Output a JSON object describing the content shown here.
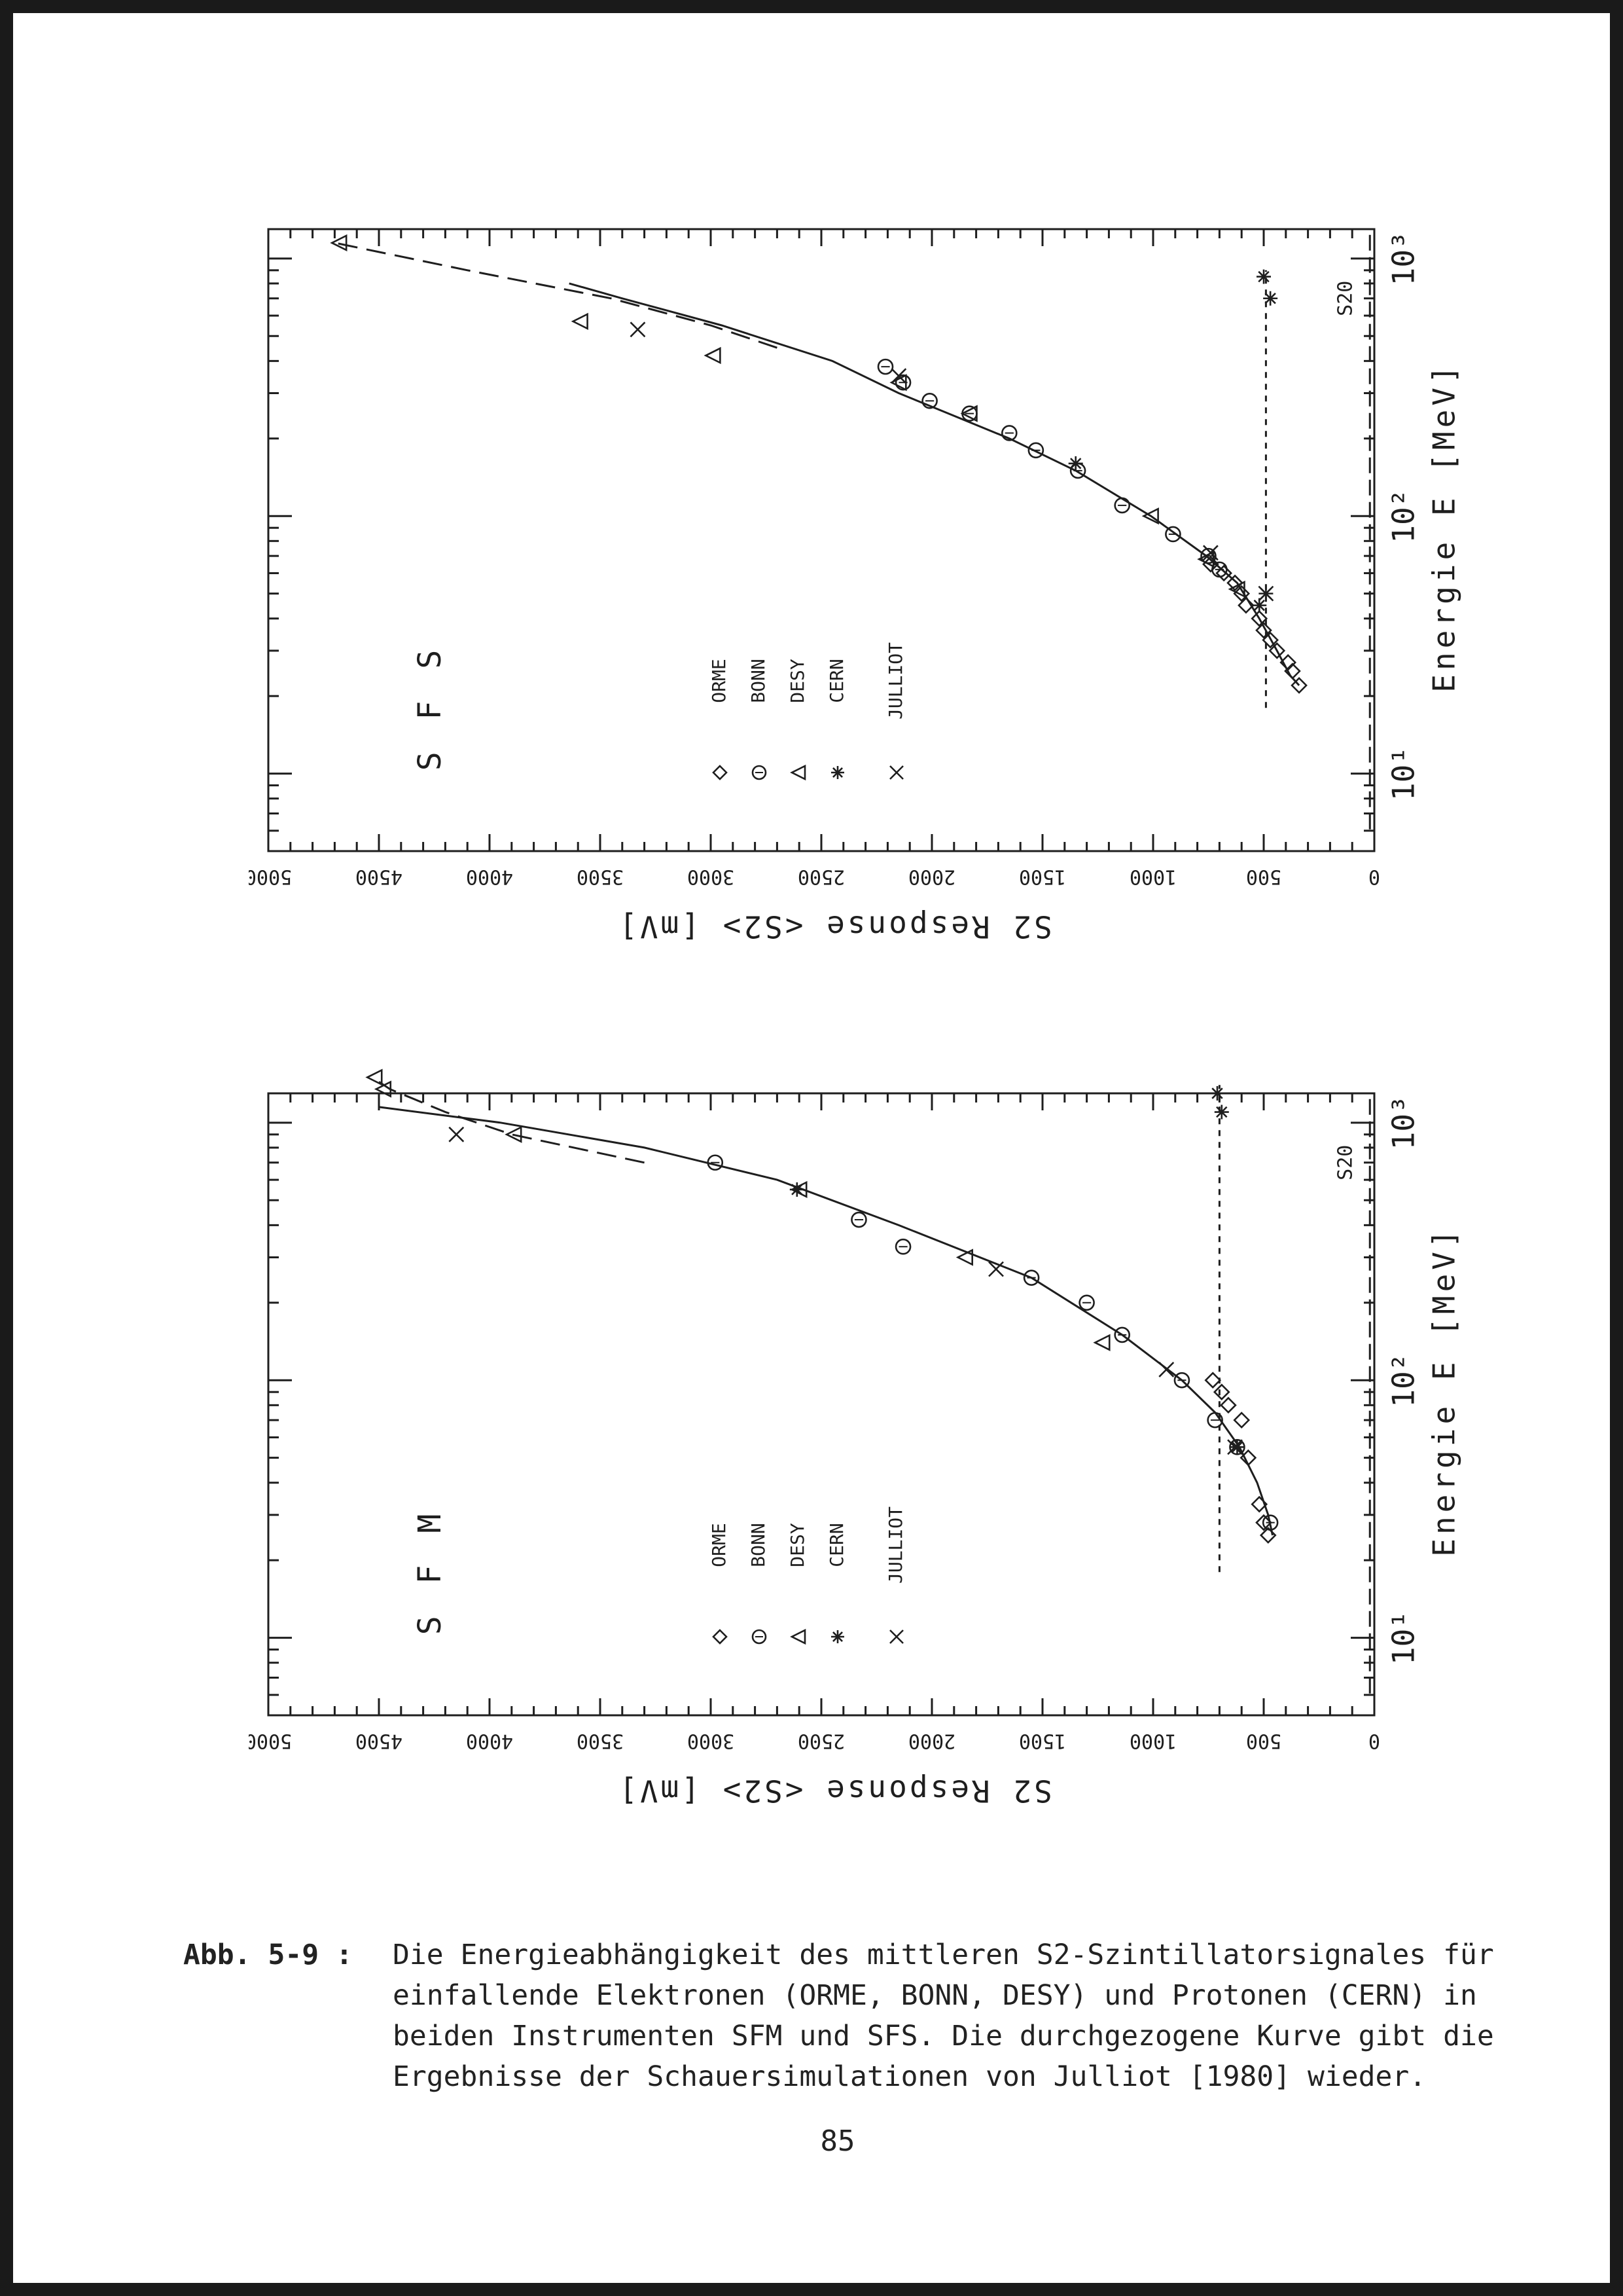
{
  "chart_data": [
    {
      "id": "sfs",
      "type": "scatter",
      "panel_label": "S F S",
      "xlabel": "Energie  E [MeV]",
      "ylabel": "S2 Response   <S2> [mV]",
      "xscale": "log",
      "xlim": [
        5,
        1300
      ],
      "ylim": [
        0,
        5000
      ],
      "x_ticklabels": [
        "10¹",
        "10²",
        "10³"
      ],
      "y_ticks": [
        0,
        500,
        1000,
        1500,
        2000,
        2500,
        3000,
        3500,
        4000,
        4500,
        5000
      ],
      "legend": [
        "ORME",
        "BONN",
        "DESY",
        "CERN",
        "JULLIOT"
      ],
      "legend_placement": "upper-middle",
      "grid": false,
      "threshold_label": "S20",
      "threshold_value": 20,
      "series": [
        {
          "name": "ORME",
          "marker": "diamond",
          "points": [
            [
              22,
              340
            ],
            [
              25,
              370
            ],
            [
              27,
              390
            ],
            [
              30,
              440
            ],
            [
              33,
              470
            ],
            [
              36,
              500
            ],
            [
              40,
              520
            ],
            [
              45,
              580
            ],
            [
              50,
              600
            ],
            [
              55,
              630
            ],
            [
              60,
              680
            ],
            [
              65,
              740
            ]
          ]
        },
        {
          "name": "BONN",
          "marker": "circle",
          "points": [
            [
              62,
              700
            ],
            [
              70,
              750
            ],
            [
              85,
              910
            ],
            [
              110,
              1140
            ],
            [
              150,
              1340
            ],
            [
              180,
              1530
            ],
            [
              210,
              1650
            ],
            [
              250,
              1830
            ],
            [
              280,
              2010
            ],
            [
              330,
              2130
            ],
            [
              380,
              2210
            ]
          ]
        },
        {
          "name": "DESY",
          "marker": "triangle",
          "points": [
            [
              52,
              620
            ],
            [
              68,
              760
            ],
            [
              100,
              1010
            ],
            [
              250,
              1830
            ],
            [
              330,
              2150
            ],
            [
              420,
              2990
            ],
            [
              570,
              3590
            ],
            [
              1150,
              4680
            ]
          ]
        },
        {
          "name": "CERN",
          "marker": "asterisk",
          "points": [
            [
              45,
              520
            ],
            [
              50,
              490
            ],
            [
              160,
              1350
            ],
            [
              700,
              470
            ],
            [
              850,
              500
            ]
          ]
        },
        {
          "name": "JULLIOT",
          "marker": "x",
          "points": [
            [
              50,
              490
            ],
            [
              72,
              740
            ],
            [
              350,
              2150
            ],
            [
              530,
              3330
            ]
          ]
        }
      ],
      "curves": {
        "simulation": {
          "style": "solid",
          "points": [
            [
              22,
              340
            ],
            [
              24,
              380
            ],
            [
              30,
              440
            ],
            [
              40,
              520
            ],
            [
              55,
              620
            ],
            [
              70,
              760
            ],
            [
              100,
              1010
            ],
            [
              150,
              1350
            ],
            [
              200,
              1650
            ],
            [
              300,
              2150
            ],
            [
              400,
              2450
            ],
            [
              550,
              2950
            ],
            [
              700,
              3400
            ],
            [
              800,
              3640
            ]
          ]
        },
        "electron_extension": {
          "style": "dashed",
          "points": [
            [
              450,
              2700
            ],
            [
              550,
              3000
            ],
            [
              700,
              3450
            ],
            [
              900,
              4100
            ],
            [
              1150,
              4700
            ]
          ]
        },
        "proton_level": {
          "style": "dotted",
          "points": [
            [
              18,
              490
            ],
            [
              900,
              490
            ]
          ]
        }
      }
    },
    {
      "id": "sfm",
      "type": "scatter",
      "panel_label": "S F M",
      "xlabel": "Energie  E [MeV]",
      "ylabel": "S2 Response   <S2> [mV]",
      "xscale": "log",
      "xlim": [
        5,
        1300
      ],
      "ylim": [
        0,
        5000
      ],
      "x_ticklabels": [
        "10¹",
        "10²",
        "10³"
      ],
      "y_ticks": [
        0,
        500,
        1000,
        1500,
        2000,
        2500,
        3000,
        3500,
        4000,
        4500,
        5000
      ],
      "legend": [
        "ORME",
        "BONN",
        "DESY",
        "CERN",
        "JULLIOT"
      ],
      "legend_placement": "upper-middle",
      "grid": false,
      "threshold_label": "S20",
      "threshold_value": 20,
      "series": [
        {
          "name": "ORME",
          "marker": "diamond",
          "points": [
            [
              25,
              480
            ],
            [
              28,
              500
            ],
            [
              33,
              520
            ],
            [
              50,
              570
            ],
            [
              70,
              600
            ],
            [
              80,
              660
            ],
            [
              90,
              690
            ],
            [
              100,
              730
            ]
          ]
        },
        {
          "name": "BONN",
          "marker": "circle",
          "points": [
            [
              28,
              470
            ],
            [
              55,
              620
            ],
            [
              70,
              720
            ],
            [
              100,
              870
            ],
            [
              150,
              1140
            ],
            [
              200,
              1300
            ],
            [
              250,
              1550
            ],
            [
              330,
              2130
            ],
            [
              420,
              2330
            ],
            [
              700,
              2980
            ]
          ]
        },
        {
          "name": "DESY",
          "marker": "triangle",
          "points": [
            [
              140,
              1230
            ],
            [
              300,
              1850
            ],
            [
              550,
              2600
            ],
            [
              900,
              3890
            ],
            [
              1350,
              4480
            ],
            [
              1500,
              4520
            ]
          ]
        },
        {
          "name": "CERN",
          "marker": "asterisk",
          "points": [
            [
              55,
              620
            ],
            [
              550,
              2610
            ],
            [
              1100,
              690
            ],
            [
              1300,
              710
            ]
          ]
        },
        {
          "name": "JULLIOT",
          "marker": "x",
          "points": [
            [
              55,
              630
            ],
            [
              110,
              940
            ],
            [
              270,
              1710
            ],
            [
              900,
              4150
            ]
          ]
        }
      ],
      "curves": {
        "simulation": {
          "style": "solid",
          "points": [
            [
              25,
              460
            ],
            [
              30,
              480
            ],
            [
              40,
              530
            ],
            [
              55,
              610
            ],
            [
              75,
              720
            ],
            [
              100,
              870
            ],
            [
              150,
              1140
            ],
            [
              250,
              1550
            ],
            [
              400,
              2150
            ],
            [
              600,
              2700
            ],
            [
              800,
              3300
            ],
            [
              1000,
              3950
            ],
            [
              1150,
              4500
            ]
          ]
        },
        "electron_extension": {
          "style": "dashed",
          "points": [
            [
              700,
              3300
            ],
            [
              900,
              3900
            ],
            [
              1100,
              4200
            ],
            [
              1350,
              4450
            ],
            [
              1500,
              4530
            ]
          ]
        },
        "proton_level": {
          "style": "dotted",
          "points": [
            [
              18,
              700
            ],
            [
              1400,
              700
            ]
          ]
        }
      }
    }
  ],
  "caption": {
    "label": "Abb. 5-9 :",
    "lines": [
      "Die Energieabhängigkeit des mittleren S2-Szintillatorsignales für",
      "einfallende Elektronen (ORME, BONN, DESY) und  Protonen (CERN) in",
      "beiden Instrumenten SFM und SFS. Die durchgezogene Kurve gibt die",
      "Ergebnisse der Schauersimulationen von Julliot [1980] wieder."
    ]
  },
  "page_number": "85"
}
